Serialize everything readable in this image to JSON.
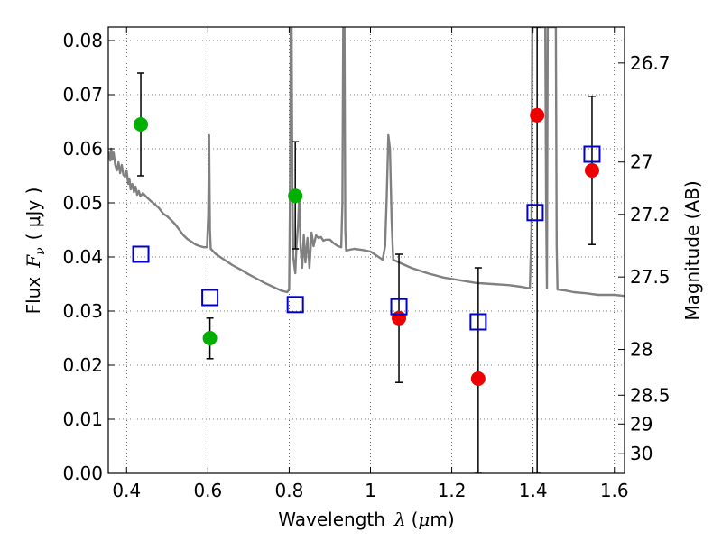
{
  "chart_data": {
    "type": "scatter",
    "xlabel_parts": {
      "text": "Wavelength",
      "symbol": "λ",
      "unit_open": "(",
      "unit_mu": "μ",
      "unit_rest": "m)"
    },
    "ylabel_parts": {
      "text": "Flux",
      "symbol": "F",
      "subscript": "ν",
      "unit": "( μJy )"
    },
    "y2label": "Magnitude (AB)",
    "xlim": [
      0.355,
      1.625
    ],
    "ylim": [
      0.0,
      0.0825
    ],
    "grid": true,
    "x_ticks": [
      {
        "value": 0.4,
        "label": "0.4"
      },
      {
        "value": 0.6,
        "label": "0.6"
      },
      {
        "value": 0.8,
        "label": "0.8"
      },
      {
        "value": 1.0,
        "label": "1"
      },
      {
        "value": 1.2,
        "label": "1.2"
      },
      {
        "value": 1.4,
        "label": "1.4"
      },
      {
        "value": 1.6,
        "label": "1.6"
      }
    ],
    "y_ticks": [
      {
        "value": 0.0,
        "label": "0.00"
      },
      {
        "value": 0.01,
        "label": "0.01"
      },
      {
        "value": 0.02,
        "label": "0.02"
      },
      {
        "value": 0.03,
        "label": "0.03"
      },
      {
        "value": 0.04,
        "label": "0.04"
      },
      {
        "value": 0.05,
        "label": "0.05"
      },
      {
        "value": 0.06,
        "label": "0.06"
      },
      {
        "value": 0.07,
        "label": "0.07"
      },
      {
        "value": 0.08,
        "label": "0.08"
      }
    ],
    "y2_ticks": [
      {
        "value": 26.7,
        "label": "26.7"
      },
      {
        "value": 27.0,
        "label": "27"
      },
      {
        "value": 27.2,
        "label": "27.2"
      },
      {
        "value": 27.5,
        "label": "27.5"
      },
      {
        "value": 28.0,
        "label": "28"
      },
      {
        "value": 28.5,
        "label": "28.5"
      },
      {
        "value": 29.0,
        "label": "29"
      },
      {
        "value": 30.0,
        "label": "30"
      }
    ],
    "series": [
      {
        "kind": "line",
        "color": "#808080",
        "points": [
          [
            0.355,
            0.0595
          ],
          [
            0.36,
            0.0578
          ],
          [
            0.362,
            0.06
          ],
          [
            0.365,
            0.058
          ],
          [
            0.368,
            0.0593
          ],
          [
            0.372,
            0.057
          ],
          [
            0.376,
            0.056
          ],
          [
            0.38,
            0.0575
          ],
          [
            0.384,
            0.0555
          ],
          [
            0.388,
            0.057
          ],
          [
            0.392,
            0.0552
          ],
          [
            0.396,
            0.0548
          ],
          [
            0.4,
            0.056
          ],
          [
            0.404,
            0.0535
          ],
          [
            0.407,
            0.0545
          ],
          [
            0.41,
            0.0525
          ],
          [
            0.414,
            0.0535
          ],
          [
            0.418,
            0.052
          ],
          [
            0.422,
            0.053
          ],
          [
            0.426,
            0.0515
          ],
          [
            0.43,
            0.0522
          ],
          [
            0.434,
            0.0512
          ],
          [
            0.44,
            0.0518
          ],
          [
            0.45,
            0.051
          ],
          [
            0.46,
            0.0503
          ],
          [
            0.47,
            0.0497
          ],
          [
            0.48,
            0.049
          ],
          [
            0.49,
            0.048
          ],
          [
            0.5,
            0.0475
          ],
          [
            0.51,
            0.0468
          ],
          [
            0.52,
            0.046
          ],
          [
            0.53,
            0.045
          ],
          [
            0.54,
            0.044
          ],
          [
            0.55,
            0.0433
          ],
          [
            0.56,
            0.0428
          ],
          [
            0.57,
            0.0423
          ],
          [
            0.58,
            0.042
          ],
          [
            0.59,
            0.0418
          ],
          [
            0.598,
            0.0418
          ],
          [
            0.601,
            0.048
          ],
          [
            0.603,
            0.0625
          ],
          [
            0.605,
            0.045
          ],
          [
            0.607,
            0.0415
          ],
          [
            0.62,
            0.0405
          ],
          [
            0.64,
            0.0395
          ],
          [
            0.66,
            0.0385
          ],
          [
            0.68,
            0.0377
          ],
          [
            0.7,
            0.0368
          ],
          [
            0.72,
            0.036
          ],
          [
            0.74,
            0.0352
          ],
          [
            0.76,
            0.0345
          ],
          [
            0.78,
            0.0338
          ],
          [
            0.795,
            0.0335
          ],
          [
            0.8,
            0.034
          ],
          [
            0.802,
            0.05
          ],
          [
            0.804,
            0.0825
          ],
          [
            0.806,
            0.0825
          ],
          [
            0.808,
            0.052
          ],
          [
            0.81,
            0.04
          ],
          [
            0.815,
            0.037
          ],
          [
            0.818,
            0.042
          ],
          [
            0.822,
            0.046
          ],
          [
            0.825,
            0.052
          ],
          [
            0.828,
            0.042
          ],
          [
            0.832,
            0.038
          ],
          [
            0.836,
            0.044
          ],
          [
            0.84,
            0.039
          ],
          [
            0.845,
            0.0435
          ],
          [
            0.85,
            0.038
          ],
          [
            0.855,
            0.0445
          ],
          [
            0.86,
            0.042
          ],
          [
            0.866,
            0.044
          ],
          [
            0.872,
            0.0435
          ],
          [
            0.878,
            0.0437
          ],
          [
            0.884,
            0.043
          ],
          [
            0.89,
            0.0432
          ],
          [
            0.9,
            0.0432
          ],
          [
            0.91,
            0.0425
          ],
          [
            0.92,
            0.042
          ],
          [
            0.928,
            0.0418
          ],
          [
            0.931,
            0.05
          ],
          [
            0.933,
            0.0825
          ],
          [
            0.936,
            0.0825
          ],
          [
            0.938,
            0.045
          ],
          [
            0.94,
            0.0412
          ],
          [
            0.96,
            0.0415
          ],
          [
            0.98,
            0.0413
          ],
          [
            1.0,
            0.041
          ],
          [
            1.02,
            0.04
          ],
          [
            1.03,
            0.0395
          ],
          [
            1.036,
            0.042
          ],
          [
            1.04,
            0.051
          ],
          [
            1.044,
            0.0625
          ],
          [
            1.048,
            0.06
          ],
          [
            1.052,
            0.047
          ],
          [
            1.056,
            0.0395
          ],
          [
            1.07,
            0.039
          ],
          [
            1.1,
            0.038
          ],
          [
            1.14,
            0.037
          ],
          [
            1.18,
            0.0362
          ],
          [
            1.22,
            0.0357
          ],
          [
            1.26,
            0.0352
          ],
          [
            1.3,
            0.035
          ],
          [
            1.34,
            0.0348
          ],
          [
            1.37,
            0.0345
          ],
          [
            1.392,
            0.0342
          ],
          [
            1.396,
            0.045
          ],
          [
            1.398,
            0.0825
          ],
          [
            1.43,
            0.0825
          ],
          [
            1.432,
            0.05
          ],
          [
            1.434,
            0.0342
          ],
          [
            1.436,
            0.0825
          ],
          [
            1.456,
            0.0825
          ],
          [
            1.458,
            0.042
          ],
          [
            1.46,
            0.034
          ],
          [
            1.48,
            0.0338
          ],
          [
            1.5,
            0.0335
          ],
          [
            1.53,
            0.0333
          ],
          [
            1.56,
            0.033
          ],
          [
            1.58,
            0.033
          ],
          [
            1.6,
            0.033
          ],
          [
            1.625,
            0.0328
          ]
        ]
      },
      {
        "kind": "points",
        "marker": "circle",
        "color": "#00b000",
        "points": [
          {
            "x": 0.435,
            "y": 0.0645,
            "err_lo": 0.055,
            "err_hi": 0.074
          },
          {
            "x": 0.605,
            "y": 0.025,
            "err_lo": 0.0212,
            "err_hi": 0.0287
          },
          {
            "x": 0.815,
            "y": 0.0513,
            "err_lo": 0.0415,
            "err_hi": 0.0613
          }
        ]
      },
      {
        "kind": "points",
        "marker": "circle",
        "color": "#ee0000",
        "points": [
          {
            "x": 1.07,
            "y": 0.0287,
            "err_lo": 0.0168,
            "err_hi": 0.0405
          },
          {
            "x": 1.265,
            "y": 0.0175,
            "err_lo": 0.0,
            "err_hi": 0.038
          },
          {
            "x": 1.41,
            "y": 0.0662,
            "err_lo": 0.0,
            "err_hi": 0.0825
          },
          {
            "x": 1.545,
            "y": 0.056,
            "err_lo": 0.0423,
            "err_hi": 0.0697
          }
        ]
      },
      {
        "kind": "points",
        "marker": "square",
        "color": "#0000cc",
        "points": [
          {
            "x": 0.435,
            "y": 0.0405
          },
          {
            "x": 0.605,
            "y": 0.0325
          },
          {
            "x": 0.815,
            "y": 0.0312
          },
          {
            "x": 1.07,
            "y": 0.0308
          },
          {
            "x": 1.265,
            "y": 0.028
          },
          {
            "x": 1.405,
            "y": 0.0482
          },
          {
            "x": 1.545,
            "y": 0.059
          }
        ]
      }
    ]
  }
}
